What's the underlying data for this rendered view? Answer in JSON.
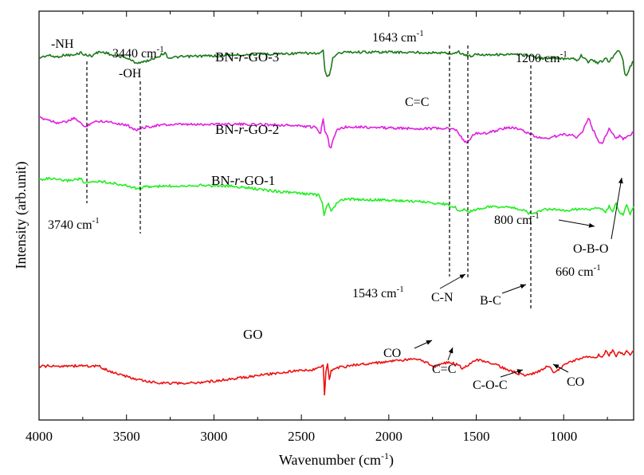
{
  "chart_data": {
    "type": "line",
    "title": "",
    "xlabel": "Wavenumber (cm",
    "xlabel_sup": "-1",
    "xlabel_tail": ")",
    "ylabel": "Intensity (arb.unit)",
    "xlim": [
      4000,
      600
    ],
    "x_reversed": true,
    "x_ticks": [
      4000,
      3500,
      3000,
      2500,
      2000,
      1500,
      1000
    ],
    "y_ticks_shown": false,
    "grid": false,
    "legend": "none",
    "series": [
      {
        "name": "BN-r-GO-3",
        "color": "#1a7a1a",
        "label_parts": [
          "BN-",
          "r",
          "-GO-3"
        ],
        "points": [
          [
            4000,
            0.72
          ],
          [
            3950,
            0.78
          ],
          [
            3900,
            0.74
          ],
          [
            3850,
            0.79
          ],
          [
            3800,
            0.78
          ],
          [
            3760,
            0.85
          ],
          [
            3740,
            0.79
          ],
          [
            3700,
            0.77
          ],
          [
            3660,
            0.86
          ],
          [
            3620,
            0.85
          ],
          [
            3580,
            0.78
          ],
          [
            3540,
            0.76
          ],
          [
            3500,
            0.72
          ],
          [
            3460,
            0.63
          ],
          [
            3440,
            0.6
          ],
          [
            3400,
            0.62
          ],
          [
            3350,
            0.7
          ],
          [
            3320,
            0.75
          ],
          [
            3300,
            0.8
          ],
          [
            3280,
            0.84
          ],
          [
            3260,
            0.72
          ],
          [
            3200,
            0.74
          ],
          [
            3100,
            0.76
          ],
          [
            3000,
            0.77
          ],
          [
            2900,
            0.79
          ],
          [
            2800,
            0.8
          ],
          [
            2700,
            0.81
          ],
          [
            2600,
            0.82
          ],
          [
            2500,
            0.83
          ],
          [
            2450,
            0.83
          ],
          [
            2400,
            0.82
          ],
          [
            2375,
            0.88
          ],
          [
            2365,
            0.4
          ],
          [
            2350,
            0.25
          ],
          [
            2340,
            0.3
          ],
          [
            2330,
            0.5
          ],
          [
            2320,
            0.7
          ],
          [
            2300,
            0.82
          ],
          [
            2250,
            0.86
          ],
          [
            2100,
            0.86
          ],
          [
            2000,
            0.86
          ],
          [
            1900,
            0.85
          ],
          [
            1800,
            0.85
          ],
          [
            1700,
            0.84
          ],
          [
            1660,
            0.83
          ],
          [
            1643,
            0.82
          ],
          [
            1600,
            0.86
          ],
          [
            1570,
            0.8
          ],
          [
            1543,
            0.76
          ],
          [
            1520,
            0.78
          ],
          [
            1500,
            0.8
          ],
          [
            1400,
            0.8
          ],
          [
            1300,
            0.8
          ],
          [
            1200,
            0.78
          ],
          [
            1150,
            0.72
          ],
          [
            1100,
            0.7
          ],
          [
            1050,
            0.71
          ],
          [
            1000,
            0.7
          ],
          [
            950,
            0.72
          ],
          [
            920,
            0.66
          ],
          [
            900,
            0.78
          ],
          [
            880,
            0.72
          ],
          [
            860,
            0.62
          ],
          [
            840,
            0.66
          ],
          [
            800,
            0.6
          ],
          [
            780,
            0.64
          ],
          [
            760,
            0.7
          ],
          [
            740,
            0.62
          ],
          [
            720,
            0.74
          ],
          [
            700,
            0.86
          ],
          [
            680,
            0.88
          ],
          [
            660,
            0.64
          ],
          [
            650,
            0.35
          ],
          [
            640,
            0.3
          ],
          [
            620,
            0.5
          ],
          [
            600,
            0.65
          ]
        ]
      },
      {
        "name": "BN-r-GO-2",
        "color": "#e020e0",
        "label_parts": [
          "BN-",
          "r",
          "-GO-2"
        ],
        "points": [
          [
            4000,
            0.62
          ],
          [
            3950,
            0.58
          ],
          [
            3900,
            0.52
          ],
          [
            3850,
            0.53
          ],
          [
            3800,
            0.6
          ],
          [
            3770,
            0.55
          ],
          [
            3740,
            0.42
          ],
          [
            3700,
            0.52
          ],
          [
            3650,
            0.55
          ],
          [
            3600,
            0.54
          ],
          [
            3550,
            0.5
          ],
          [
            3500,
            0.47
          ],
          [
            3460,
            0.4
          ],
          [
            3440,
            0.37
          ],
          [
            3400,
            0.42
          ],
          [
            3350,
            0.45
          ],
          [
            3300,
            0.47
          ],
          [
            3200,
            0.48
          ],
          [
            3100,
            0.48
          ],
          [
            3000,
            0.49
          ],
          [
            2900,
            0.49
          ],
          [
            2800,
            0.48
          ],
          [
            2700,
            0.48
          ],
          [
            2600,
            0.47
          ],
          [
            2500,
            0.45
          ],
          [
            2420,
            0.42
          ],
          [
            2390,
            0.3
          ],
          [
            2375,
            0.62
          ],
          [
            2365,
            0.35
          ],
          [
            2350,
            0.25
          ],
          [
            2340,
            0.05
          ],
          [
            2330,
            0.02
          ],
          [
            2320,
            0.15
          ],
          [
            2300,
            0.35
          ],
          [
            2270,
            0.42
          ],
          [
            2200,
            0.44
          ],
          [
            2100,
            0.42
          ],
          [
            2000,
            0.41
          ],
          [
            1900,
            0.4
          ],
          [
            1800,
            0.4
          ],
          [
            1700,
            0.4
          ],
          [
            1650,
            0.39
          ],
          [
            1620,
            0.38
          ],
          [
            1600,
            0.3
          ],
          [
            1580,
            0.2
          ],
          [
            1560,
            0.12
          ],
          [
            1543,
            0.15
          ],
          [
            1520,
            0.25
          ],
          [
            1500,
            0.3
          ],
          [
            1450,
            0.3
          ],
          [
            1400,
            0.34
          ],
          [
            1350,
            0.4
          ],
          [
            1300,
            0.42
          ],
          [
            1250,
            0.38
          ],
          [
            1200,
            0.3
          ],
          [
            1150,
            0.22
          ],
          [
            1100,
            0.2
          ],
          [
            1050,
            0.24
          ],
          [
            1000,
            0.28
          ],
          [
            950,
            0.27
          ],
          [
            920,
            0.22
          ],
          [
            900,
            0.3
          ],
          [
            870,
            0.5
          ],
          [
            860,
            0.6
          ],
          [
            850,
            0.55
          ],
          [
            840,
            0.42
          ],
          [
            820,
            0.3
          ],
          [
            800,
            0.12
          ],
          [
            780,
            0.08
          ],
          [
            760,
            0.25
          ],
          [
            740,
            0.4
          ],
          [
            720,
            0.3
          ],
          [
            700,
            0.2
          ],
          [
            680,
            0.25
          ],
          [
            660,
            0.18
          ],
          [
            640,
            0.22
          ],
          [
            620,
            0.28
          ],
          [
            600,
            0.32
          ]
        ]
      },
      {
        "name": "BN-r-GO-1",
        "color": "#22ee22",
        "label_parts": [
          "BN-",
          "r",
          "-GO-1"
        ],
        "points": [
          [
            4000,
            0.38
          ],
          [
            3950,
            0.4
          ],
          [
            3900,
            0.38
          ],
          [
            3850,
            0.36
          ],
          [
            3800,
            0.38
          ],
          [
            3760,
            0.4
          ],
          [
            3740,
            0.3
          ],
          [
            3700,
            0.34
          ],
          [
            3650,
            0.35
          ],
          [
            3600,
            0.33
          ],
          [
            3550,
            0.3
          ],
          [
            3500,
            0.27
          ],
          [
            3460,
            0.24
          ],
          [
            3440,
            0.22
          ],
          [
            3400,
            0.25
          ],
          [
            3300,
            0.26
          ],
          [
            3200,
            0.27
          ],
          [
            3100,
            0.28
          ],
          [
            3000,
            0.27
          ],
          [
            2900,
            0.26
          ],
          [
            2800,
            0.23
          ],
          [
            2700,
            0.19
          ],
          [
            2600,
            0.16
          ],
          [
            2500,
            0.13
          ],
          [
            2450,
            0.12
          ],
          [
            2400,
            0.1
          ],
          [
            2380,
            -0.05
          ],
          [
            2370,
            -0.25
          ],
          [
            2360,
            -0.15
          ],
          [
            2350,
            -0.05
          ],
          [
            2340,
            -0.08
          ],
          [
            2330,
            -0.2
          ],
          [
            2320,
            -0.15
          ],
          [
            2300,
            -0.05
          ],
          [
            2280,
            0.0
          ],
          [
            2250,
            0.03
          ],
          [
            2100,
            0.02
          ],
          [
            2000,
            0.01
          ],
          [
            1900,
            0.0
          ],
          [
            1800,
            -0.02
          ],
          [
            1700,
            -0.05
          ],
          [
            1660,
            -0.07
          ],
          [
            1643,
            -0.1
          ],
          [
            1620,
            -0.12
          ],
          [
            1600,
            -0.18
          ],
          [
            1570,
            -0.15
          ],
          [
            1543,
            -0.2
          ],
          [
            1500,
            -0.15
          ],
          [
            1450,
            -0.12
          ],
          [
            1400,
            -0.1
          ],
          [
            1350,
            -0.11
          ],
          [
            1300,
            -0.12
          ],
          [
            1250,
            -0.15
          ],
          [
            1220,
            -0.18
          ],
          [
            1200,
            -0.22
          ],
          [
            1180,
            -0.24
          ],
          [
            1150,
            -0.2
          ],
          [
            1100,
            -0.15
          ],
          [
            1050,
            -0.16
          ],
          [
            1000,
            -0.18
          ],
          [
            950,
            -0.16
          ],
          [
            900,
            -0.14
          ],
          [
            850,
            -0.16
          ],
          [
            800,
            -0.12
          ],
          [
            780,
            -0.15
          ],
          [
            760,
            -0.2
          ],
          [
            740,
            -0.1
          ],
          [
            720,
            -0.18
          ],
          [
            700,
            -0.05
          ],
          [
            680,
            -0.2
          ],
          [
            660,
            -0.25
          ],
          [
            640,
            -0.08
          ],
          [
            620,
            -0.25
          ],
          [
            600,
            -0.1
          ]
        ]
      },
      {
        "name": "GO",
        "color": "#ee1111",
        "label_parts": [
          "GO"
        ],
        "points": [
          [
            4000,
            -0.5
          ],
          [
            3950,
            -0.49
          ],
          [
            3900,
            -0.5
          ],
          [
            3850,
            -0.48
          ],
          [
            3800,
            -0.49
          ],
          [
            3750,
            -0.48
          ],
          [
            3700,
            -0.5
          ],
          [
            3660,
            -0.49
          ],
          [
            3640,
            -0.52
          ],
          [
            3600,
            -0.58
          ],
          [
            3550,
            -0.63
          ],
          [
            3500,
            -0.68
          ],
          [
            3450,
            -0.72
          ],
          [
            3400,
            -0.76
          ],
          [
            3350,
            -0.78
          ],
          [
            3300,
            -0.79
          ],
          [
            3200,
            -0.8
          ],
          [
            3100,
            -0.79
          ],
          [
            3000,
            -0.76
          ],
          [
            2900,
            -0.72
          ],
          [
            2800,
            -0.68
          ],
          [
            2700,
            -0.64
          ],
          [
            2600,
            -0.6
          ],
          [
            2500,
            -0.57
          ],
          [
            2420,
            -0.55
          ],
          [
            2390,
            -0.5
          ],
          [
            2375,
            -0.48
          ],
          [
            2368,
            -1.0
          ],
          [
            2360,
            -0.62
          ],
          [
            2350,
            -0.45
          ],
          [
            2340,
            -0.72
          ],
          [
            2330,
            -0.58
          ],
          [
            2300,
            -0.52
          ],
          [
            2250,
            -0.5
          ],
          [
            2200,
            -0.47
          ],
          [
            2100,
            -0.44
          ],
          [
            2000,
            -0.41
          ],
          [
            1900,
            -0.38
          ],
          [
            1850,
            -0.37
          ],
          [
            1800,
            -0.4
          ],
          [
            1760,
            -0.47
          ],
          [
            1740,
            -0.5
          ],
          [
            1700,
            -0.45
          ],
          [
            1650,
            -0.42
          ],
          [
            1600,
            -0.48
          ],
          [
            1580,
            -0.53
          ],
          [
            1560,
            -0.5
          ],
          [
            1520,
            -0.4
          ],
          [
            1500,
            -0.38
          ],
          [
            1450,
            -0.4
          ],
          [
            1400,
            -0.45
          ],
          [
            1350,
            -0.52
          ],
          [
            1300,
            -0.58
          ],
          [
            1250,
            -0.63
          ],
          [
            1220,
            -0.66
          ],
          [
            1200,
            -0.65
          ],
          [
            1150,
            -0.6
          ],
          [
            1100,
            -0.5
          ],
          [
            1080,
            -0.52
          ],
          [
            1060,
            -0.6
          ],
          [
            1040,
            -0.58
          ],
          [
            1000,
            -0.48
          ],
          [
            950,
            -0.4
          ],
          [
            900,
            -0.35
          ],
          [
            850,
            -0.32
          ],
          [
            820,
            -0.36
          ],
          [
            800,
            -0.28
          ],
          [
            780,
            -0.34
          ],
          [
            760,
            -0.22
          ],
          [
            740,
            -0.3
          ],
          [
            720,
            -0.2
          ],
          [
            700,
            -0.32
          ],
          [
            680,
            -0.22
          ],
          [
            660,
            -0.3
          ],
          [
            640,
            -0.2
          ],
          [
            620,
            -0.28
          ],
          [
            600,
            -0.22
          ]
        ]
      }
    ],
    "annotations": {
      "nh": "-NH",
      "oh": "-OH",
      "w3440": "3440 cm",
      "w3740": "3740 cm",
      "w1643": "1643 cm",
      "w1200": "1200 cm",
      "w1543": "1543 cm",
      "w800": "800 cm",
      "w660": "660 cm",
      "sup": "-1",
      "cc_top": "C=C",
      "cn": "C-N",
      "bc": "B-C",
      "obo": "O-B-O",
      "co_left": "CO",
      "cc_go": "C=C",
      "coc": "C-O-C",
      "co_right": "CO"
    }
  }
}
